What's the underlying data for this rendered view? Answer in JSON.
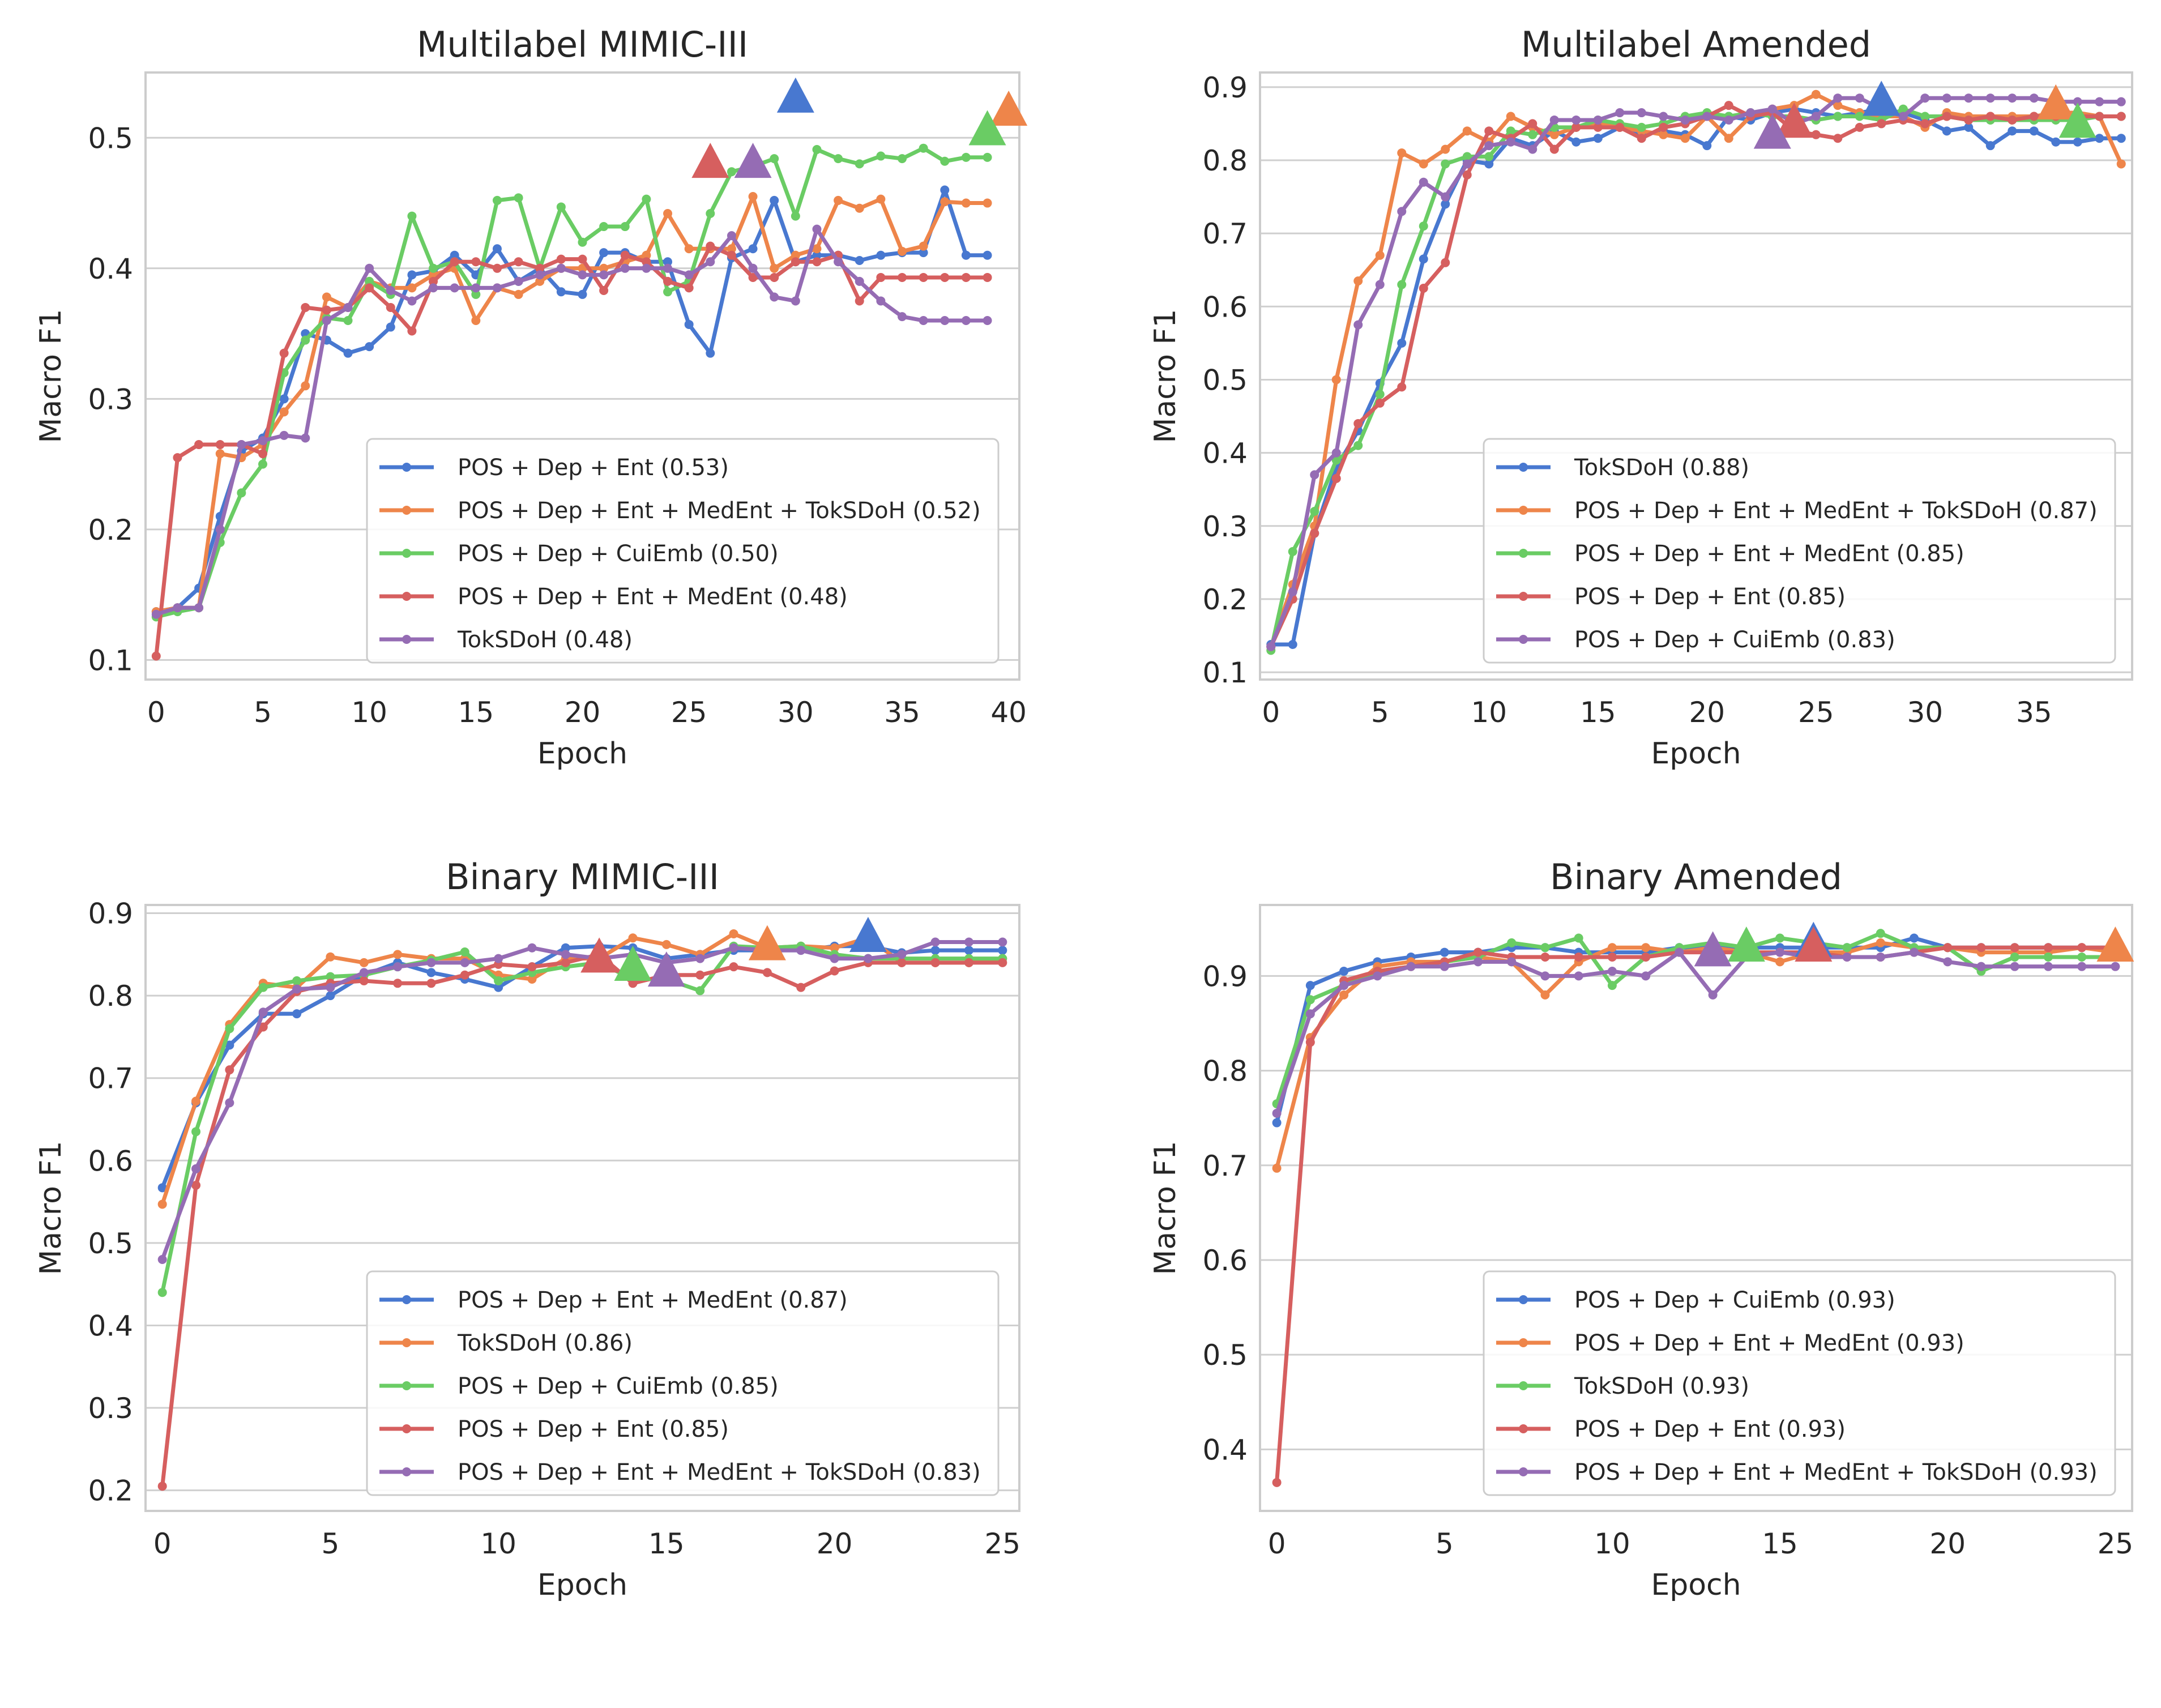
{
  "palette": {
    "blue": "#4878d0",
    "orange": "#ee854a",
    "green": "#6acc64",
    "red": "#d65f5f",
    "purple": "#956cb4",
    "grid": "#cfcfcf",
    "axis": "#cccccc"
  },
  "chart_data": [
    {
      "type": "line",
      "title": "Multilabel MIMIC-III",
      "xlabel": "Epoch",
      "ylabel": "Macro F1",
      "xlim": [
        -0.5,
        40.5
      ],
      "ylim": [
        0.085,
        0.55
      ],
      "xticks": [
        0,
        5,
        10,
        15,
        20,
        25,
        30,
        35,
        40
      ],
      "yticks": [
        0.1,
        0.2,
        0.3,
        0.4,
        0.5
      ],
      "legend_position": "bottom-right",
      "series": [
        {
          "name": "POS + Dep + Ent (0.53)",
          "color": "blue",
          "best": {
            "x": 30,
            "y": 0.53
          },
          "values": [
            0.137,
            0.14,
            0.155,
            0.21,
            0.26,
            0.27,
            0.3,
            0.35,
            0.345,
            0.335,
            0.34,
            0.355,
            0.395,
            0.398,
            0.41,
            0.395,
            0.415,
            0.39,
            0.4,
            0.382,
            0.38,
            0.412,
            0.412,
            0.405,
            0.405,
            0.357,
            0.335,
            0.408,
            0.415,
            0.452,
            0.405,
            0.41,
            0.41,
            0.406,
            0.41,
            0.412,
            0.412,
            0.46,
            0.41,
            0.41
          ]
        },
        {
          "name": "POS + Dep + Ent + MedEnt + TokSDoH (0.52)",
          "color": "orange",
          "best": {
            "x": 40,
            "y": 0.52
          },
          "values": [
            0.137,
            0.14,
            0.14,
            0.258,
            0.255,
            0.265,
            0.29,
            0.31,
            0.378,
            0.37,
            0.39,
            0.385,
            0.385,
            0.395,
            0.4,
            0.36,
            0.385,
            0.38,
            0.39,
            0.4,
            0.4,
            0.4,
            0.405,
            0.41,
            0.442,
            0.415,
            0.415,
            0.415,
            0.455,
            0.4,
            0.41,
            0.415,
            0.452,
            0.446,
            0.453,
            0.413,
            0.417,
            0.451,
            0.45,
            0.45
          ]
        },
        {
          "name": "POS + Dep + CuiEmb (0.50)",
          "color": "green",
          "best": {
            "x": 39,
            "y": 0.505
          },
          "values": [
            0.133,
            0.137,
            0.14,
            0.19,
            0.228,
            0.25,
            0.32,
            0.345,
            0.362,
            0.36,
            0.39,
            0.38,
            0.44,
            0.4,
            0.405,
            0.38,
            0.452,
            0.454,
            0.4,
            0.447,
            0.42,
            0.432,
            0.432,
            0.453,
            0.382,
            0.39,
            0.442,
            0.474,
            0.478,
            0.484,
            0.44,
            0.491,
            0.484,
            0.48,
            0.486,
            0.484,
            0.492,
            0.482,
            0.485,
            0.485
          ]
        },
        {
          "name": "POS + Dep + Ent + MedEnt (0.48)",
          "color": "red",
          "best": {
            "x": 26,
            "y": 0.48
          },
          "values": [
            0.103,
            0.255,
            0.265,
            0.265,
            0.265,
            0.258,
            0.335,
            0.37,
            0.368,
            0.37,
            0.385,
            0.37,
            0.352,
            0.39,
            0.405,
            0.405,
            0.4,
            0.405,
            0.4,
            0.407,
            0.407,
            0.383,
            0.41,
            0.405,
            0.39,
            0.385,
            0.417,
            0.41,
            0.393,
            0.393,
            0.405,
            0.405,
            0.41,
            0.375,
            0.393,
            0.393,
            0.393,
            0.393,
            0.393,
            0.393
          ]
        },
        {
          "name": "TokSDoH (0.48)",
          "color": "purple",
          "best": {
            "x": 28,
            "y": 0.48
          },
          "values": [
            0.135,
            0.14,
            0.14,
            0.2,
            0.265,
            0.268,
            0.272,
            0.27,
            0.36,
            0.37,
            0.4,
            0.383,
            0.375,
            0.385,
            0.385,
            0.385,
            0.385,
            0.39,
            0.395,
            0.4,
            0.395,
            0.395,
            0.4,
            0.4,
            0.4,
            0.395,
            0.405,
            0.425,
            0.4,
            0.378,
            0.375,
            0.43,
            0.405,
            0.39,
            0.375,
            0.363,
            0.36,
            0.36,
            0.36,
            0.36
          ]
        }
      ]
    },
    {
      "type": "line",
      "title": "Multilabel Amended",
      "xlabel": "Epoch",
      "ylabel": "Macro F1",
      "xlim": [
        -0.5,
        39.5
      ],
      "ylim": [
        0.09,
        0.92
      ],
      "xticks": [
        0,
        5,
        10,
        15,
        20,
        25,
        30,
        35
      ],
      "yticks": [
        0.1,
        0.2,
        0.3,
        0.4,
        0.5,
        0.6,
        0.7,
        0.8,
        0.9
      ],
      "legend_position": "bottom-right",
      "series": [
        {
          "name": "TokSDoH (0.88)",
          "color": "blue",
          "best": {
            "x": 28,
            "y": 0.88
          },
          "values": [
            0.138,
            0.138,
            0.29,
            0.38,
            0.43,
            0.495,
            0.55,
            0.665,
            0.74,
            0.8,
            0.795,
            0.83,
            0.82,
            0.84,
            0.825,
            0.83,
            0.845,
            0.835,
            0.84,
            0.835,
            0.82,
            0.86,
            0.855,
            0.865,
            0.87,
            0.865,
            0.86,
            0.865,
            0.87,
            0.865,
            0.855,
            0.84,
            0.845,
            0.82,
            0.84,
            0.84,
            0.825,
            0.825,
            0.83,
            0.83
          ]
        },
        {
          "name": "POS + Dep + Ent + MedEnt + TokSDoH (0.87)",
          "color": "orange",
          "best": {
            "x": 36,
            "y": 0.875
          },
          "values": [
            0.135,
            0.22,
            0.3,
            0.5,
            0.635,
            0.67,
            0.81,
            0.795,
            0.815,
            0.84,
            0.825,
            0.86,
            0.845,
            0.835,
            0.845,
            0.85,
            0.845,
            0.84,
            0.835,
            0.83,
            0.86,
            0.83,
            0.86,
            0.87,
            0.875,
            0.89,
            0.875,
            0.865,
            0.86,
            0.86,
            0.845,
            0.865,
            0.86,
            0.86,
            0.86,
            0.86,
            0.865,
            0.865,
            0.86,
            0.795
          ]
        },
        {
          "name": "POS + Dep + Ent + MedEnt (0.85)",
          "color": "green",
          "best": {
            "x": 37,
            "y": 0.85
          },
          "values": [
            0.13,
            0.265,
            0.32,
            0.39,
            0.41,
            0.48,
            0.63,
            0.71,
            0.795,
            0.805,
            0.805,
            0.84,
            0.835,
            0.845,
            0.845,
            0.855,
            0.85,
            0.845,
            0.85,
            0.86,
            0.865,
            0.86,
            0.865,
            0.86,
            0.86,
            0.855,
            0.86,
            0.86,
            0.855,
            0.87,
            0.86,
            0.86,
            0.855,
            0.855,
            0.855,
            0.855,
            0.855,
            0.855,
            0.86,
            0.86
          ]
        },
        {
          "name": "POS + Dep + Ent (0.85)",
          "color": "red",
          "best": {
            "x": 24,
            "y": 0.85
          },
          "values": [
            0.135,
            0.2,
            0.29,
            0.365,
            0.44,
            0.468,
            0.49,
            0.625,
            0.66,
            0.78,
            0.84,
            0.83,
            0.85,
            0.815,
            0.845,
            0.845,
            0.845,
            0.83,
            0.845,
            0.85,
            0.86,
            0.875,
            0.86,
            0.865,
            0.84,
            0.835,
            0.83,
            0.845,
            0.85,
            0.855,
            0.85,
            0.86,
            0.855,
            0.86,
            0.855,
            0.86,
            0.86,
            0.86,
            0.86,
            0.86
          ]
        },
        {
          "name": "POS + Dep + CuiEmb (0.83)",
          "color": "purple",
          "best": {
            "x": 23,
            "y": 0.835
          },
          "values": [
            0.135,
            0.21,
            0.37,
            0.4,
            0.575,
            0.63,
            0.73,
            0.77,
            0.75,
            0.795,
            0.82,
            0.825,
            0.815,
            0.855,
            0.855,
            0.855,
            0.865,
            0.865,
            0.86,
            0.855,
            0.86,
            0.855,
            0.865,
            0.87,
            0.85,
            0.86,
            0.885,
            0.885,
            0.87,
            0.86,
            0.885,
            0.885,
            0.885,
            0.885,
            0.885,
            0.885,
            0.88,
            0.88,
            0.88,
            0.88
          ]
        }
      ]
    },
    {
      "type": "line",
      "title": "Binary MIMIC-III",
      "xlabel": "Epoch",
      "ylabel": "Macro F1",
      "xlim": [
        -0.5,
        25.5
      ],
      "ylim": [
        0.175,
        0.91
      ],
      "xticks": [
        0,
        5,
        10,
        15,
        20,
        25
      ],
      "yticks": [
        0.2,
        0.3,
        0.4,
        0.5,
        0.6,
        0.7,
        0.8,
        0.9
      ],
      "legend_position": "bottom-right",
      "series": [
        {
          "name": "POS + Dep + Ent + MedEnt (0.87)",
          "color": "blue",
          "best": {
            "x": 21,
            "y": 0.87
          },
          "values": [
            0.567,
            0.67,
            0.74,
            0.778,
            0.778,
            0.8,
            0.825,
            0.84,
            0.828,
            0.82,
            0.81,
            0.835,
            0.858,
            0.86,
            0.858,
            0.845,
            0.85,
            0.855,
            0.855,
            0.855,
            0.86,
            0.86,
            0.852,
            0.855,
            0.855,
            0.855
          ]
        },
        {
          "name": "TokSDoH (0.86)",
          "color": "orange",
          "best": {
            "x": 18,
            "y": 0.86
          },
          "values": [
            0.547,
            0.672,
            0.765,
            0.815,
            0.81,
            0.847,
            0.84,
            0.85,
            0.845,
            0.845,
            0.825,
            0.82,
            0.845,
            0.845,
            0.87,
            0.862,
            0.85,
            0.875,
            0.858,
            0.86,
            0.858,
            0.87,
            0.84,
            0.84,
            0.84,
            0.845
          ]
        },
        {
          "name": "POS + Dep + CuiEmb (0.85)",
          "color": "green",
          "best": {
            "x": 14,
            "y": 0.835
          },
          "values": [
            0.44,
            0.635,
            0.76,
            0.81,
            0.818,
            0.823,
            0.825,
            0.835,
            0.843,
            0.853,
            0.818,
            0.828,
            0.835,
            0.84,
            0.82,
            0.82,
            0.806,
            0.86,
            0.858,
            0.86,
            0.85,
            0.845,
            0.845,
            0.845,
            0.845,
            0.845
          ]
        },
        {
          "name": "POS + Dep + Ent (0.85)",
          "color": "red",
          "best": {
            "x": 13,
            "y": 0.845
          },
          "values": [
            0.205,
            0.57,
            0.71,
            0.762,
            0.805,
            0.815,
            0.818,
            0.815,
            0.815,
            0.825,
            0.838,
            0.835,
            0.84,
            0.85,
            0.815,
            0.825,
            0.825,
            0.835,
            0.828,
            0.81,
            0.83,
            0.84,
            0.84,
            0.84,
            0.84,
            0.84
          ]
        },
        {
          "name": "POS + Dep + Ent + MedEnt + TokSDoH (0.83)",
          "color": "purple",
          "best": {
            "x": 15,
            "y": 0.828
          },
          "values": [
            0.48,
            0.59,
            0.67,
            0.78,
            0.808,
            0.81,
            0.828,
            0.835,
            0.84,
            0.84,
            0.845,
            0.858,
            0.85,
            0.845,
            0.85,
            0.84,
            0.845,
            0.858,
            0.855,
            0.855,
            0.845,
            0.845,
            0.85,
            0.865,
            0.865,
            0.865
          ]
        }
      ]
    },
    {
      "type": "line",
      "title": "Binary Amended",
      "xlabel": "Epoch",
      "ylabel": "Macro F1",
      "xlim": [
        -0.5,
        25.5
      ],
      "ylim": [
        0.335,
        0.975
      ],
      "xticks": [
        0,
        5,
        10,
        15,
        20,
        25
      ],
      "yticks": [
        0.4,
        0.5,
        0.6,
        0.7,
        0.8,
        0.9
      ],
      "legend_position": "bottom-right",
      "series": [
        {
          "name": "POS + Dep + CuiEmb (0.93)",
          "color": "blue",
          "best": {
            "x": 16,
            "y": 0.935
          },
          "values": [
            0.745,
            0.89,
            0.905,
            0.915,
            0.92,
            0.925,
            0.925,
            0.93,
            0.93,
            0.925,
            0.925,
            0.925,
            0.93,
            0.93,
            0.93,
            0.93,
            0.93,
            0.93,
            0.93,
            0.94,
            0.93,
            0.93,
            0.93,
            0.93,
            0.93,
            0.93
          ]
        },
        {
          "name": "POS + Dep + Ent + MedEnt (0.93)",
          "color": "orange",
          "best": {
            "x": 25,
            "y": 0.93
          },
          "values": [
            0.697,
            0.835,
            0.88,
            0.91,
            0.915,
            0.915,
            0.92,
            0.915,
            0.88,
            0.915,
            0.93,
            0.93,
            0.925,
            0.93,
            0.925,
            0.915,
            0.925,
            0.925,
            0.935,
            0.93,
            0.93,
            0.925,
            0.925,
            0.925,
            0.93,
            0.925
          ]
        },
        {
          "name": "TokSDoH (0.93)",
          "color": "green",
          "best": {
            "x": 14,
            "y": 0.93
          },
          "values": [
            0.765,
            0.875,
            0.89,
            0.905,
            0.91,
            0.915,
            0.92,
            0.935,
            0.93,
            0.94,
            0.89,
            0.92,
            0.93,
            0.935,
            0.93,
            0.94,
            0.935,
            0.93,
            0.945,
            0.93,
            0.93,
            0.905,
            0.92,
            0.92,
            0.92,
            0.92
          ]
        },
        {
          "name": "POS + Dep + Ent (0.93)",
          "color": "red",
          "best": {
            "x": 16,
            "y": 0.93
          },
          "values": [
            0.365,
            0.83,
            0.895,
            0.905,
            0.91,
            0.915,
            0.925,
            0.92,
            0.92,
            0.92,
            0.92,
            0.92,
            0.925,
            0.925,
            0.925,
            0.925,
            0.925,
            0.92,
            0.92,
            0.925,
            0.93,
            0.93,
            0.93,
            0.93,
            0.93,
            0.93
          ]
        },
        {
          "name": "POS + Dep + Ent + MedEnt + TokSDoH (0.93)",
          "color": "purple",
          "best": {
            "x": 13,
            "y": 0.925
          },
          "values": [
            0.755,
            0.86,
            0.89,
            0.9,
            0.91,
            0.91,
            0.915,
            0.915,
            0.9,
            0.9,
            0.905,
            0.9,
            0.925,
            0.88,
            0.92,
            0.925,
            0.92,
            0.92,
            0.92,
            0.925,
            0.915,
            0.91,
            0.91,
            0.91,
            0.91,
            0.91
          ]
        }
      ]
    }
  ]
}
